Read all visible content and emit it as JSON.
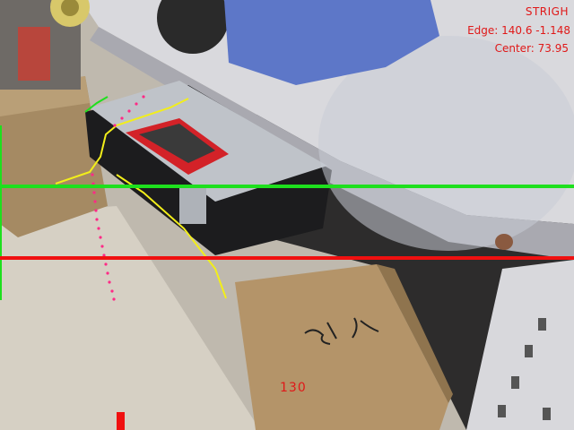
{
  "overlay": {
    "status": "STRIGH",
    "edge": "Edge: 140.6 -1.148",
    "center": "Center: 73.95",
    "speed": "130"
  },
  "colors": {
    "guide_line": "#1ee01e",
    "reference_line": "#f01010",
    "edge_contour": "#f2ee1a",
    "path_dots": "#ff2a86",
    "hud_text": "#e01818"
  },
  "icons": {
    "bottom_marker": "red-bar"
  }
}
